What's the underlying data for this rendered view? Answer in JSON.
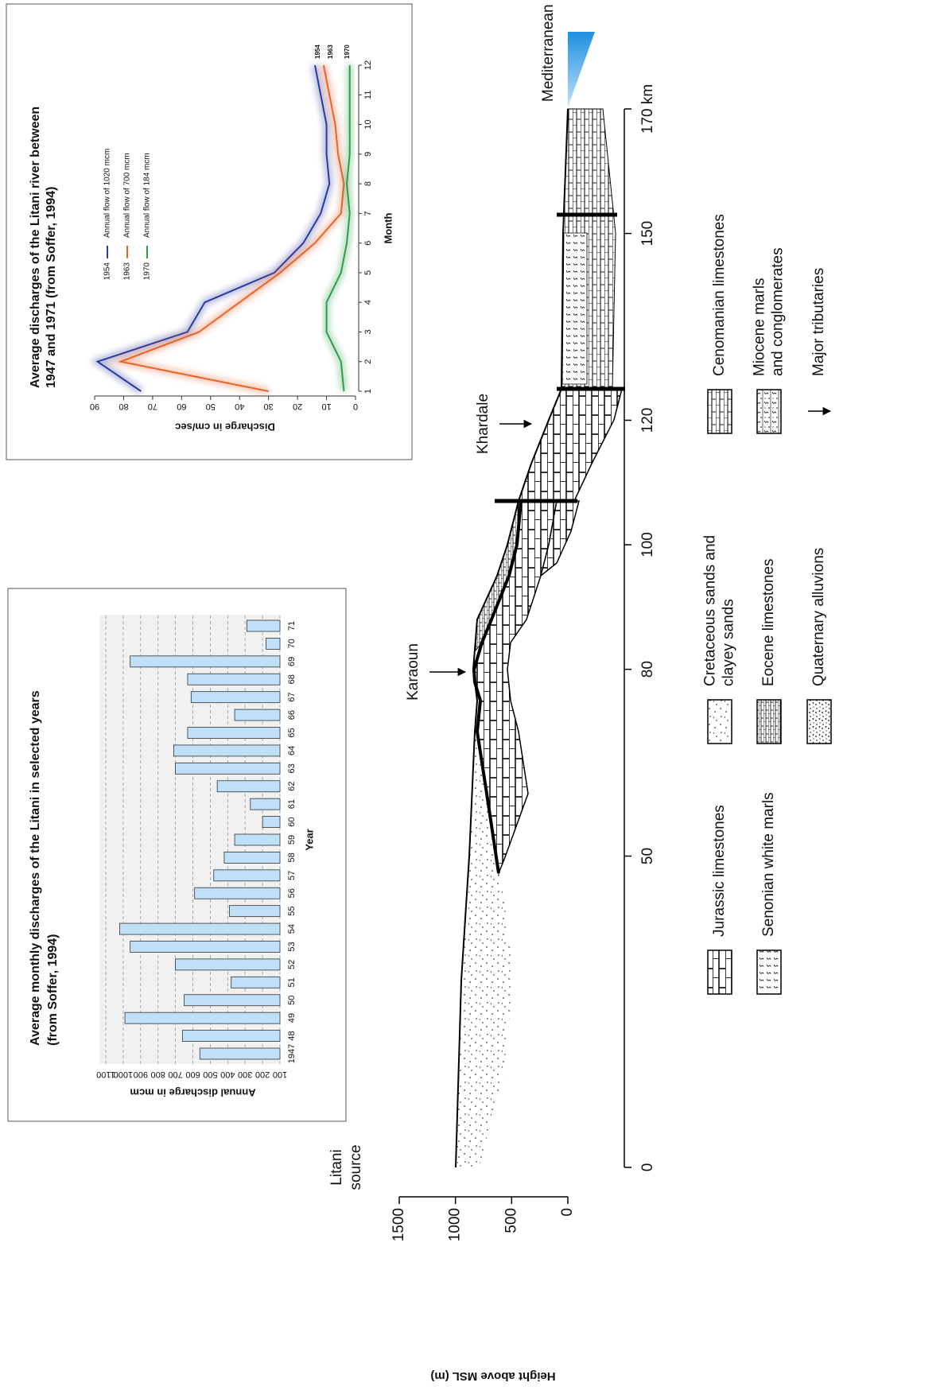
{
  "chart_data": [
    {
      "type": "bar",
      "title": [
        "Average monthly discharges of the Litani in selected years",
        "(from Soffer, 1994)"
      ],
      "x_label": "Year",
      "y_label": "Annual discharge in mcm",
      "categories": [
        "1947",
        "48",
        "49",
        "50",
        "51",
        "52",
        "53",
        "54",
        "55",
        "56",
        "57",
        "58",
        "59",
        "60",
        "61",
        "62",
        "63",
        "64",
        "65",
        "66",
        "67",
        "68",
        "69",
        "70",
        "71"
      ],
      "values": [
        560,
        660,
        990,
        650,
        380,
        700,
        960,
        1020,
        390,
        590,
        480,
        420,
        360,
        200,
        270,
        460,
        700,
        710,
        630,
        360,
        610,
        630,
        960,
        180,
        290
      ],
      "color": "#bfe0f7",
      "ylim": [
        100,
        1100
      ],
      "yticks": [
        100,
        200,
        300,
        400,
        500,
        600,
        700,
        800,
        900,
        1000,
        1100
      ],
      "grid": true
    },
    {
      "type": "line",
      "title": [
        "Average discharges of the Litani river between",
        "1947 and 1971 (from Soffer, 1994)"
      ],
      "x_label": "Month",
      "y_label": "Discharge in cm/sec",
      "x": [
        1,
        2,
        3,
        4,
        5,
        6,
        7,
        8,
        9,
        10,
        11,
        12
      ],
      "xlim": [
        1,
        12
      ],
      "xticks": [
        1,
        2,
        3,
        4,
        5,
        6,
        7,
        8,
        9,
        10,
        11,
        12
      ],
      "ylim": [
        0,
        90
      ],
      "yticks": [
        0,
        10,
        20,
        30,
        40,
        50,
        60,
        70,
        80,
        90
      ],
      "series": [
        {
          "name": "1954",
          "annotation": "Annual flow of 1020 mcm",
          "color": "#2b3a9c",
          "values": [
            74,
            89,
            58,
            52,
            28,
            18,
            12,
            9,
            10,
            10,
            12,
            14
          ]
        },
        {
          "name": "1963",
          "annotation": "Annual flow of 700 mcm",
          "color": "#e8632a",
          "values": [
            30,
            81,
            54,
            40,
            26,
            14,
            5,
            4,
            6,
            7,
            9,
            11
          ]
        },
        {
          "name": "1970",
          "annotation": "Annual flow of 184 mcm",
          "color": "#2e9e4a",
          "values": [
            4,
            5,
            10,
            10,
            5,
            3,
            2,
            3,
            2,
            2,
            2,
            2
          ]
        }
      ]
    }
  ],
  "cross_section": {
    "xlim": [
      0,
      170
    ],
    "xticks": [
      0,
      50,
      80,
      100,
      120,
      150,
      {
        "value": 170,
        "label": "170 km"
      }
    ],
    "ylim": [
      0,
      1500
    ],
    "yticks": [
      0,
      500,
      1000,
      1500
    ],
    "y_label": "Height above MSL (m)",
    "source_label": [
      "Litani",
      "source"
    ],
    "places": [
      "Karaoun",
      "Khardale",
      "Mediterranean"
    ],
    "legend": [
      [
        "Jurassic limestones"
      ],
      [
        "Senonian white marls"
      ],
      [
        "Cretaceous sands and",
        "clayey sands"
      ],
      [
        "Eocene limestones"
      ],
      [
        "Quaternary alluvions"
      ],
      [
        "Cenomanian limestones"
      ],
      [
        "Miocene marls",
        "and conglomerates"
      ],
      [
        "Major tributaries"
      ]
    ]
  }
}
